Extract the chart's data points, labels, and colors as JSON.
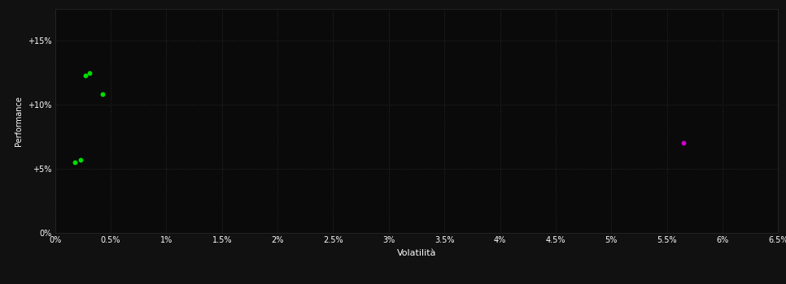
{
  "background_color": "#111111",
  "plot_bg_color": "#0a0a0a",
  "grid_color": "#2a2a2a",
  "text_color": "#ffffff",
  "xlabel": "Volatilità",
  "ylabel": "Performance",
  "xlim": [
    0,
    0.065
  ],
  "ylim": [
    0,
    0.175
  ],
  "xticks": [
    0,
    0.005,
    0.01,
    0.015,
    0.02,
    0.025,
    0.03,
    0.035,
    0.04,
    0.045,
    0.05,
    0.055,
    0.06,
    0.065
  ],
  "yticks": [
    0,
    0.05,
    0.1,
    0.15
  ],
  "green_points": [
    [
      0.0027,
      0.123
    ],
    [
      0.0031,
      0.125
    ],
    [
      0.0043,
      0.108
    ],
    [
      0.0018,
      0.055
    ],
    [
      0.0023,
      0.057
    ]
  ],
  "magenta_points": [
    [
      0.0565,
      0.07
    ]
  ],
  "green_color": "#00dd00",
  "magenta_color": "#cc00cc",
  "marker_size": 18
}
